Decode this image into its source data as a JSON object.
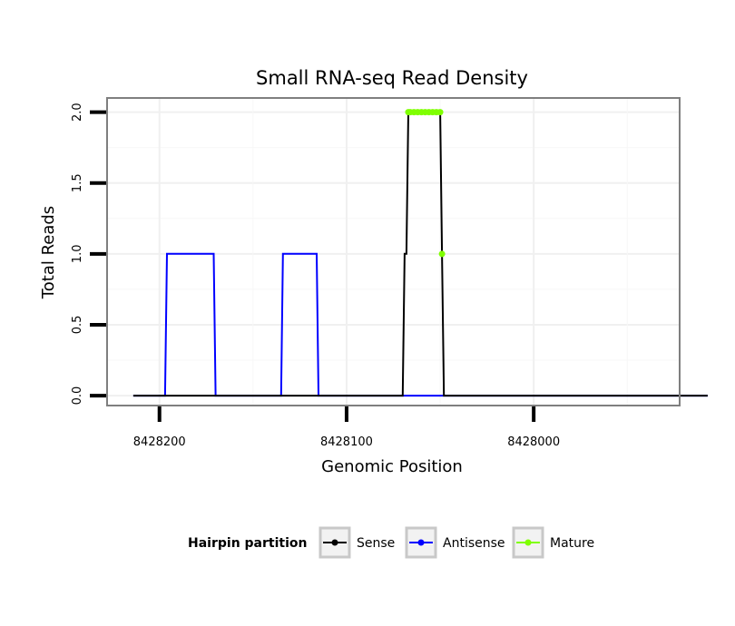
{
  "chart_data": {
    "type": "line",
    "title": "Small RNA-seq Read Density",
    "xlabel": "Genomic Position",
    "ylabel": "Total Reads",
    "x_reversed": true,
    "xlim": [
      8428228,
      8427922
    ],
    "ylim": [
      -0.07,
      2.1
    ],
    "x_ticks": [
      8428200,
      8428100,
      8428000
    ],
    "x_tick_labels": [
      "8428200",
      "8428100",
      "8428000"
    ],
    "y_ticks": [
      0,
      0.5,
      1,
      1.5,
      2
    ],
    "y_tick_labels": [
      "0.0",
      "0.5",
      "1.0",
      "1.5",
      "2.0"
    ],
    "grid": true,
    "legend": {
      "title": "Hairpin partition",
      "position": "bottom",
      "entries": [
        "Sense",
        "Antisense",
        "Mature"
      ]
    },
    "colors": {
      "Sense": "#000000",
      "Antisense": "#0000ff",
      "Mature": "#7fff00",
      "panel_border": "#7f7f7f",
      "grid": "#f0f0f0"
    },
    "series": [
      {
        "name": "Sense",
        "x": [
          8428214,
          8428070,
          8428069,
          8428068,
          8428067,
          8428066,
          8428050,
          8428049,
          8428048,
          8427907
        ],
        "values": [
          0,
          0,
          1,
          1,
          2,
          2,
          2,
          1,
          0,
          0
        ]
      },
      {
        "name": "Antisense",
        "x": [
          8428214,
          8428197,
          8428196,
          8428171,
          8428170,
          8428135,
          8428134,
          8428116,
          8428115,
          8428070,
          8428048,
          8427907
        ],
        "values": [
          0,
          0,
          1,
          1,
          0,
          0,
          1,
          1,
          0,
          0,
          0,
          0
        ]
      },
      {
        "name": "Mature",
        "x": [
          8428067,
          8428066,
          8428064,
          8428062,
          8428060,
          8428058,
          8428056,
          8428054,
          8428052,
          8428050,
          8428049
        ],
        "values": [
          2,
          2,
          2,
          2,
          2,
          2,
          2,
          2,
          2,
          2,
          1
        ]
      }
    ]
  }
}
